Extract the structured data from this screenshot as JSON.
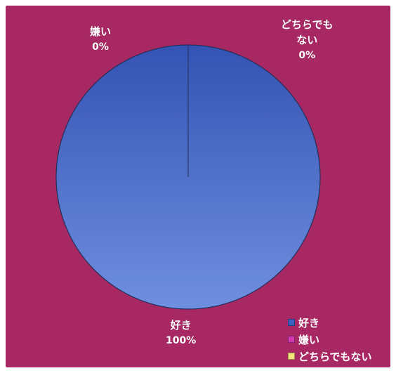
{
  "chart_data": {
    "type": "pie",
    "title": "",
    "categories": [
      "好き",
      "嫌い",
      "どちらでもない"
    ],
    "values": [
      100,
      0,
      0
    ],
    "value_labels": [
      "100%",
      "0%",
      "0%"
    ],
    "slice_labels": [
      {
        "name": "好き",
        "value": "100%"
      },
      {
        "name": "嫌い",
        "value": "0%"
      },
      {
        "name": "どちらでも\nない",
        "value": "0%"
      }
    ],
    "legend": {
      "position": "bottom-right",
      "entries": [
        {
          "label": "好き",
          "color": "#3d62bf"
        },
        {
          "label": "嫌い",
          "color": "#d23ab1"
        },
        {
          "label": "どちらでもない",
          "color": "#f2e47a"
        }
      ]
    },
    "colors": {
      "plot_background": "#a82863",
      "pie_main": "#4063c6",
      "pie_edge": "#20305a"
    }
  }
}
